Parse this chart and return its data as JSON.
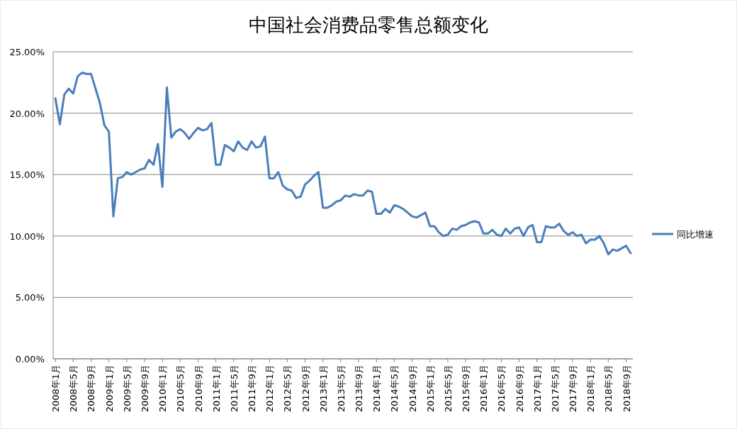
{
  "chart_data": {
    "type": "line",
    "title": "中国社会消费品零售总额变化",
    "categories": [
      "2008年1月",
      null,
      null,
      null,
      "2008年5月",
      null,
      null,
      null,
      "2008年9月",
      null,
      null,
      null,
      "2009年1月",
      null,
      null,
      null,
      "2009年5月",
      null,
      null,
      null,
      "2009年9月",
      null,
      null,
      null,
      "2010年1月",
      null,
      null,
      null,
      "2010年5月",
      null,
      null,
      null,
      "2010年9月",
      null,
      null,
      null,
      "2011年1月",
      null,
      null,
      null,
      "2011年5月",
      null,
      null,
      null,
      "2011年9月",
      null,
      null,
      null,
      "2012年1月",
      null,
      null,
      null,
      "2012年5月",
      null,
      null,
      null,
      "2012年9月",
      null,
      null,
      null,
      "2013年1月",
      null,
      null,
      null,
      "2013年5月",
      null,
      null,
      null,
      "2013年9月",
      null,
      null,
      null,
      "2014年1月",
      null,
      null,
      null,
      "2014年5月",
      null,
      null,
      null,
      "2014年9月",
      null,
      null,
      null,
      "2015年1月",
      null,
      null,
      null,
      "2015年5月",
      null,
      null,
      null,
      "2015年9月",
      null,
      null,
      null,
      "2016年1月",
      null,
      null,
      null,
      "2016年5月",
      null,
      null,
      null,
      "2016年9月",
      null,
      null,
      null,
      "2017年1月",
      null,
      null,
      null,
      "2017年5月",
      null,
      null,
      null,
      "2017年9月",
      null,
      null,
      null,
      "2018年1月",
      null,
      null,
      null,
      "2018年5月",
      null,
      null,
      null,
      "2018年9月",
      null
    ],
    "series": [
      {
        "name": "同比增速",
        "color": "#4a7ebb",
        "values": [
          21.2,
          19.1,
          21.5,
          22.0,
          21.6,
          23.0,
          23.3,
          23.2,
          23.2,
          22.0,
          20.8,
          19.0,
          18.5,
          11.6,
          14.7,
          14.8,
          15.2,
          15.0,
          15.2,
          15.4,
          15.5,
          16.2,
          15.8,
          17.5,
          14.0,
          22.1,
          18.0,
          18.5,
          18.7,
          18.4,
          17.9,
          18.4,
          18.8,
          18.6,
          18.7,
          19.2,
          15.8,
          15.8,
          17.4,
          17.2,
          16.9,
          17.7,
          17.2,
          17.0,
          17.7,
          17.2,
          17.3,
          18.1,
          14.7,
          14.7,
          15.2,
          14.1,
          13.8,
          13.7,
          13.1,
          13.2,
          14.2,
          14.5,
          14.9,
          15.2,
          12.3,
          12.3,
          12.5,
          12.8,
          12.9,
          13.3,
          13.2,
          13.4,
          13.3,
          13.3,
          13.7,
          13.6,
          11.8,
          11.8,
          12.2,
          11.9,
          12.5,
          12.4,
          12.2,
          11.9,
          11.6,
          11.5,
          11.7,
          11.9,
          10.8,
          10.8,
          10.3,
          10.0,
          10.1,
          10.6,
          10.5,
          10.8,
          10.9,
          11.1,
          11.2,
          11.1,
          10.2,
          10.2,
          10.5,
          10.1,
          10.0,
          10.6,
          10.2,
          10.6,
          10.7,
          10.0,
          10.7,
          10.9,
          9.5,
          9.5,
          10.8,
          10.7,
          10.7,
          11.0,
          10.4,
          10.1,
          10.3,
          10.0,
          10.1,
          9.4,
          9.7,
          9.7,
          10.0,
          9.4,
          8.5,
          8.9,
          8.8,
          9.0,
          9.2,
          8.6
        ]
      }
    ],
    "ylim": [
      0,
      25
    ],
    "yticks": [
      {
        "value": 0,
        "label": "0.00%"
      },
      {
        "value": 5,
        "label": "5.00%"
      },
      {
        "value": 10,
        "label": "10.00%"
      },
      {
        "value": 15,
        "label": "15.00%"
      },
      {
        "value": 20,
        "label": "20.00%"
      },
      {
        "value": 25,
        "label": "25.00%"
      }
    ],
    "grid": "y",
    "legend": "right"
  }
}
